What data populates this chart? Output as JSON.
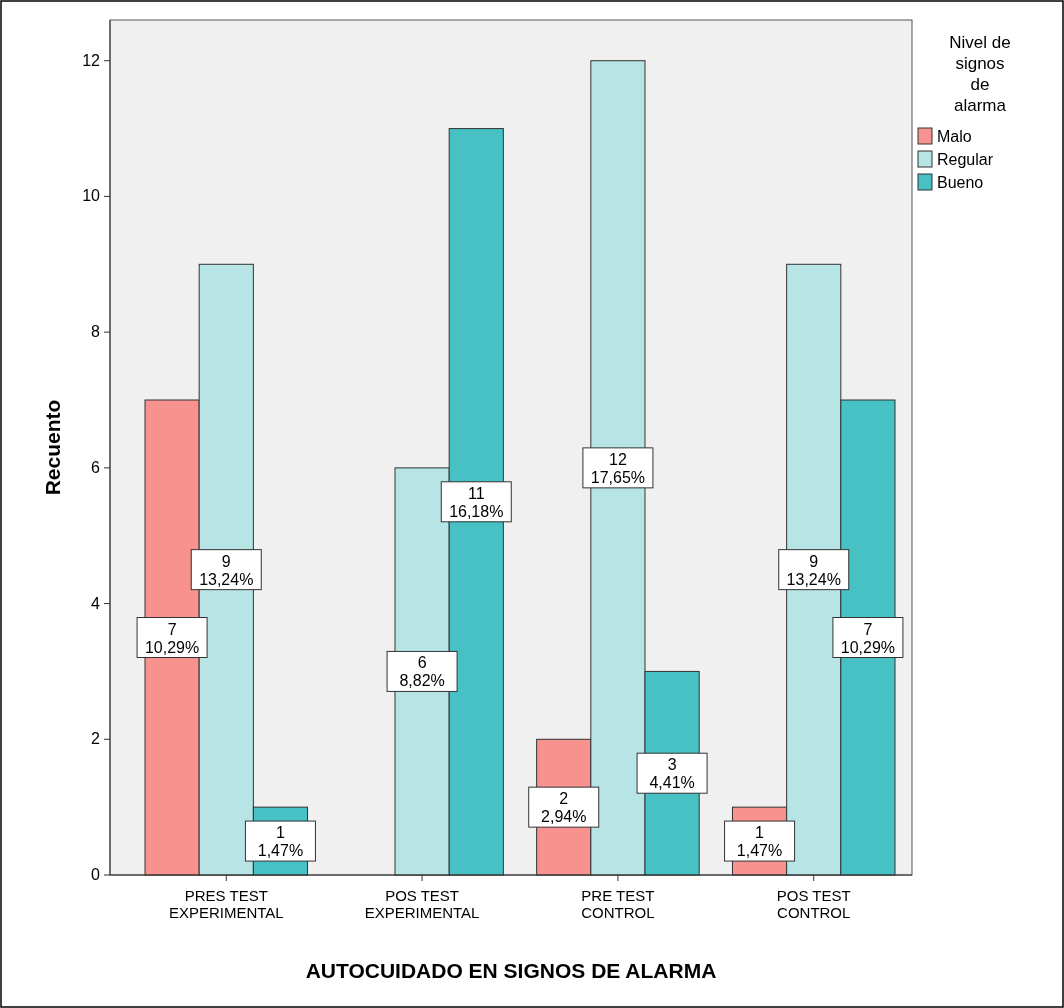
{
  "chart_data": {
    "type": "bar",
    "xlabel": "AUTOCUIDADO EN SIGNOS DE ALARMA",
    "ylabel": "Recuento",
    "legend_title": "Nivel de\nsignos\nde\nalarma",
    "legend": "right",
    "categories": [
      "PRES TEST\nEXPERIMENTAL",
      "POS TEST\nEXPERIMENTAL",
      "PRE TEST\nCONTROL",
      "POS TEST\nCONTROL"
    ],
    "ylim": [
      0,
      12.6
    ],
    "yticks": [
      0,
      2,
      4,
      6,
      8,
      10,
      12
    ],
    "series": [
      {
        "name": "Malo",
        "color": "#f7928f",
        "values": [
          7,
          null,
          2,
          1
        ],
        "value_labels": [
          "7\n10,29%",
          null,
          "2\n2,94%",
          "1\n1,47%"
        ]
      },
      {
        "name": "Regular",
        "color": "#b7e4e5",
        "values": [
          9,
          6,
          12,
          9
        ],
        "value_labels": [
          "9\n13,24%",
          "6\n8,82%",
          "12\n17,65%",
          "9\n13,24%"
        ]
      },
      {
        "name": "Bueno",
        "color": "#47c1c3",
        "values": [
          1,
          11,
          3,
          7
        ],
        "value_labels": [
          "1\n1,47%",
          "11\n16,18%",
          "3\n4,41%",
          "7\n10,29%"
        ]
      }
    ]
  }
}
